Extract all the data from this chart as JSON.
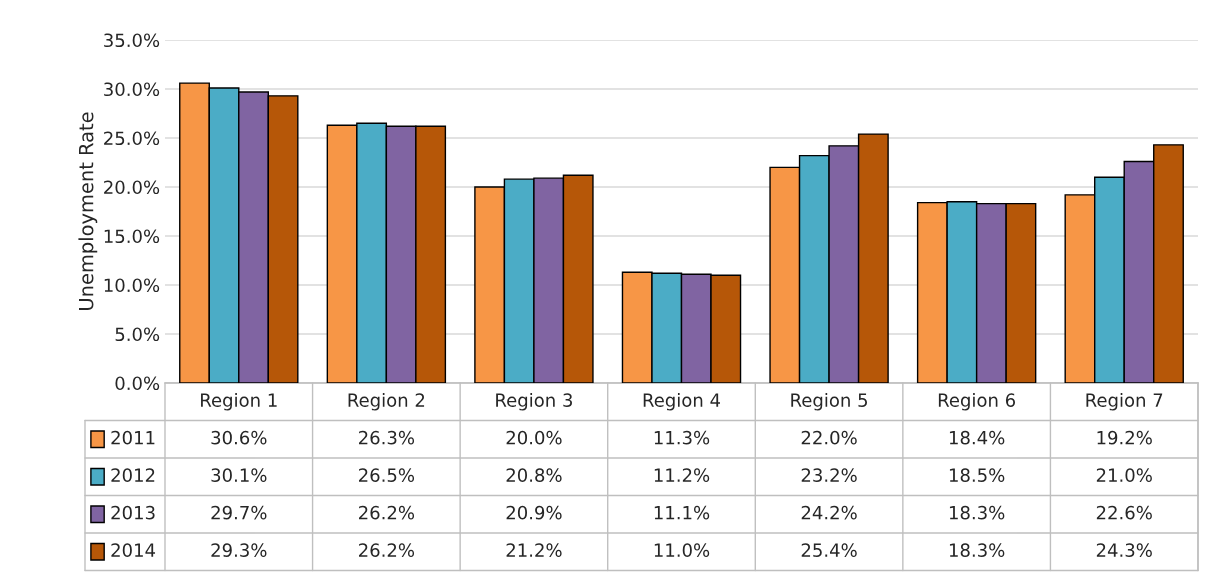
{
  "chart_data": {
    "type": "bar",
    "ylabel": "Unemployment Rate",
    "categories": [
      "Region 1",
      "Region 2",
      "Region 3",
      "Region 4",
      "Region 5",
      "Region 6",
      "Region 7"
    ],
    "series": [
      {
        "name": "2011",
        "color": "#f79646",
        "values": [
          30.6,
          26.3,
          20.0,
          11.3,
          22.0,
          18.4,
          19.2
        ],
        "value_labels": [
          "30.6%",
          "26.3%",
          "20.0%",
          "11.3%",
          "22.0%",
          "18.4%",
          "19.2%"
        ]
      },
      {
        "name": "2012",
        "color": "#4bacc6",
        "values": [
          30.1,
          26.5,
          20.8,
          11.2,
          23.2,
          18.5,
          21.0
        ],
        "value_labels": [
          "30.1%",
          "26.5%",
          "20.8%",
          "11.2%",
          "23.2%",
          "18.5%",
          "21.0%"
        ]
      },
      {
        "name": "2013",
        "color": "#8064a2",
        "values": [
          29.7,
          26.2,
          20.9,
          11.1,
          24.2,
          18.3,
          22.6
        ],
        "value_labels": [
          "29.7%",
          "26.2%",
          "20.9%",
          "11.1%",
          "24.2%",
          "18.3%",
          "22.6%"
        ]
      },
      {
        "name": "2014",
        "color": "#b65708",
        "values": [
          29.3,
          26.2,
          21.2,
          11.0,
          25.4,
          18.3,
          24.3
        ],
        "value_labels": [
          "29.3%",
          "26.2%",
          "21.2%",
          "11.0%",
          "25.4%",
          "18.3%",
          "24.3%"
        ]
      }
    ],
    "ylim": [
      0,
      35
    ],
    "yticks": [
      {
        "value": 0,
        "label": "0.0%"
      },
      {
        "value": 5,
        "label": "5.0%"
      },
      {
        "value": 10,
        "label": "10.0%"
      },
      {
        "value": 15,
        "label": "15.0%"
      },
      {
        "value": 20,
        "label": "20.0%"
      },
      {
        "value": 25,
        "label": "25.0%"
      },
      {
        "value": 30,
        "label": "30.0%"
      },
      {
        "value": 35,
        "label": "35.0%"
      }
    ],
    "grid": "y",
    "legend": "bottom left"
  }
}
